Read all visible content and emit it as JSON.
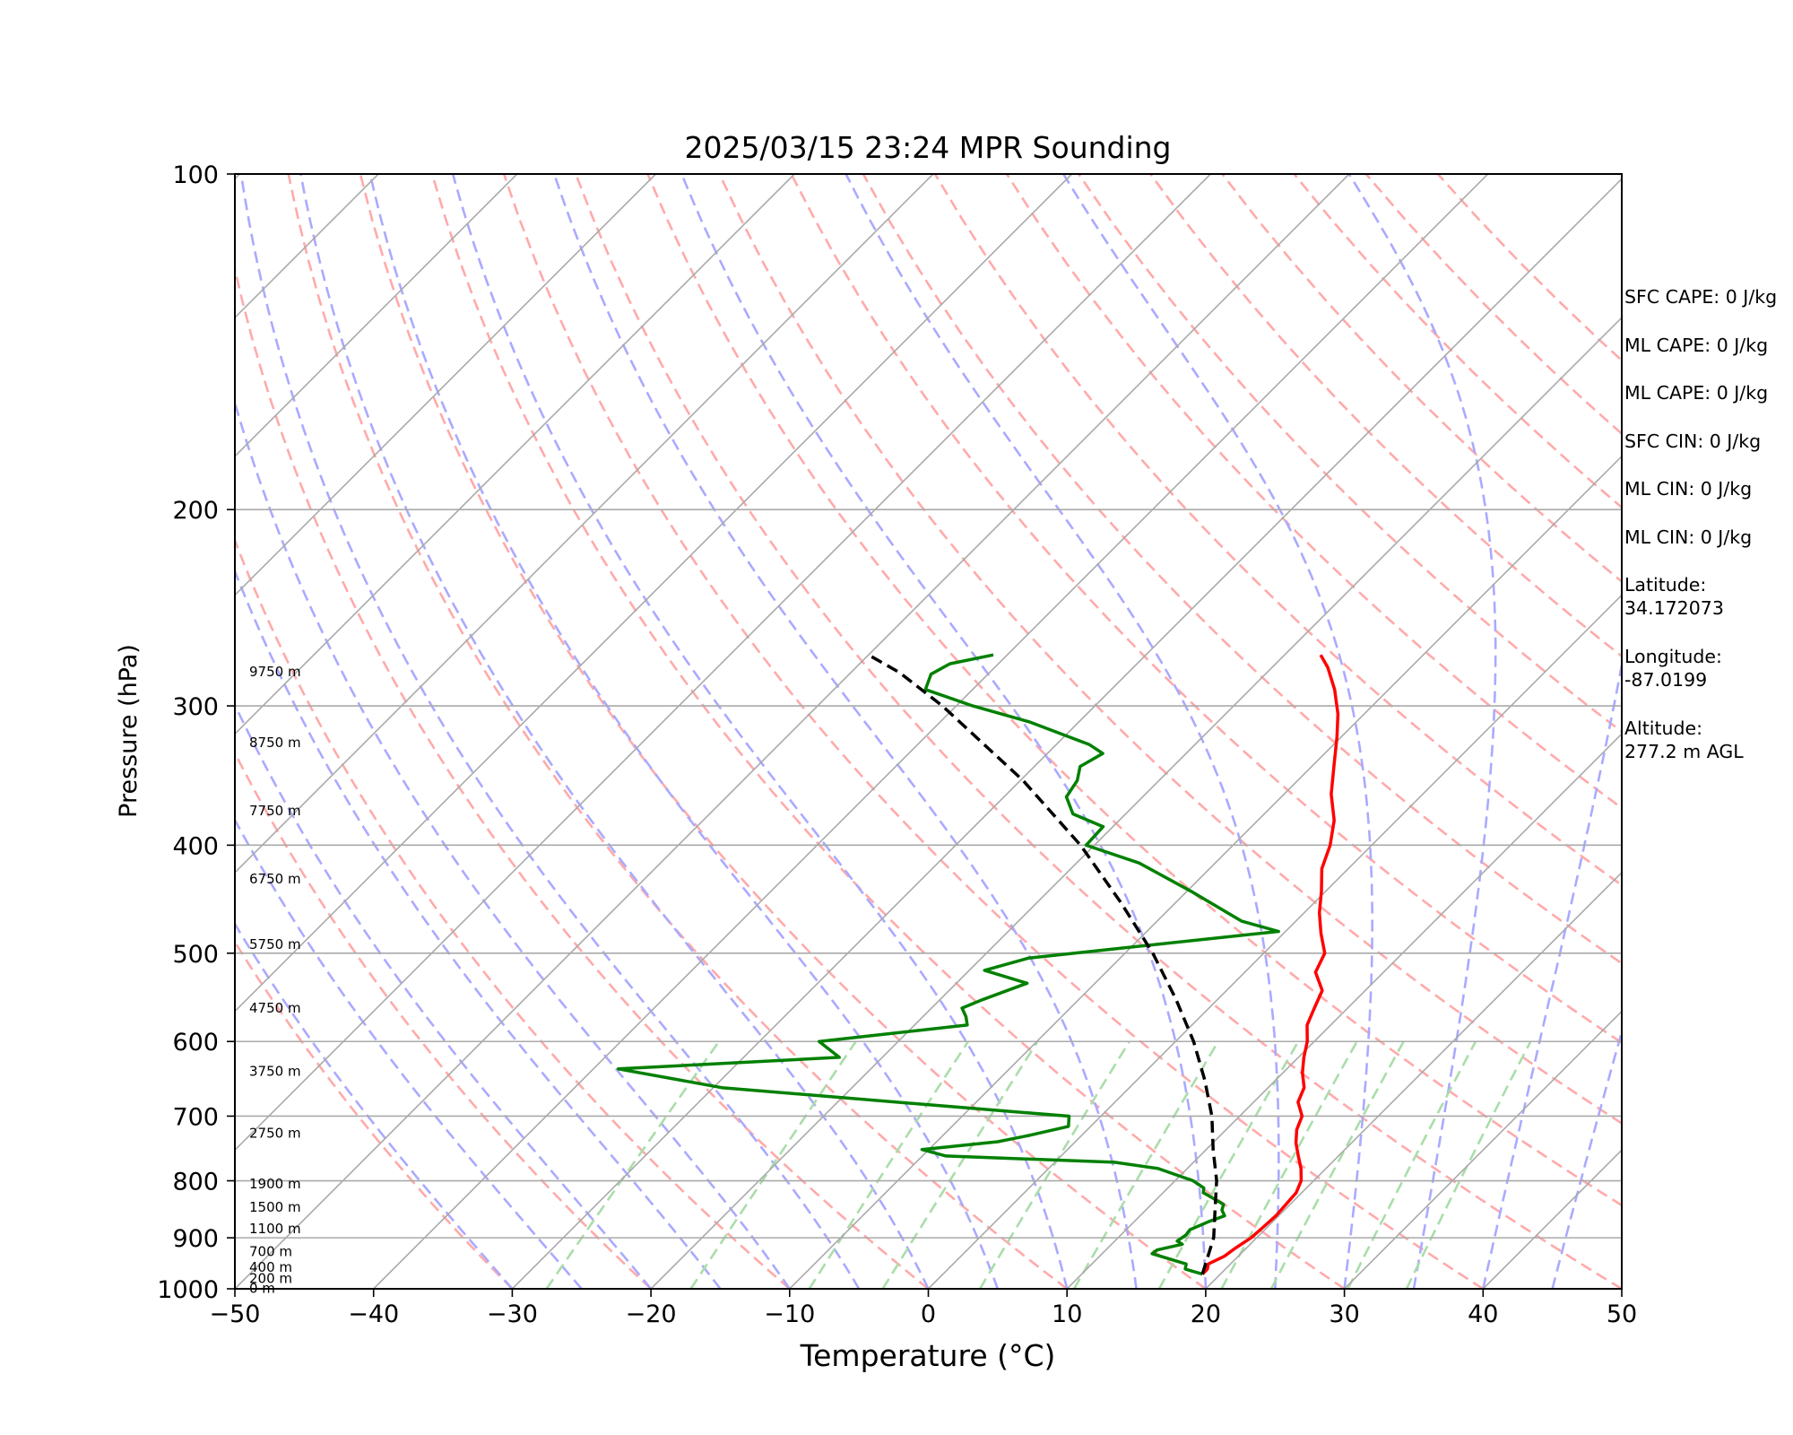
{
  "chart_data": {
    "type": "line",
    "title": "2025/03/15 23:24 MPR Sounding",
    "xlabel": "Temperature (°C)",
    "ylabel": "Pressure (hPa)",
    "xlim": [
      -50,
      50
    ],
    "ylim": [
      1000,
      100
    ],
    "y_scale": "log",
    "skew": true,
    "xticks": [
      -50,
      -40,
      -30,
      -20,
      -10,
      0,
      10,
      20,
      30,
      40,
      50
    ],
    "yticks": [
      1000,
      900,
      800,
      700,
      600,
      500,
      400,
      300,
      200,
      100
    ],
    "height_labels": [
      {
        "label": "0 m",
        "p": 997
      },
      {
        "label": "200 m",
        "p": 977
      },
      {
        "label": "400 m",
        "p": 955
      },
      {
        "label": "700 m",
        "p": 924
      },
      {
        "label": "1100 m",
        "p": 882
      },
      {
        "label": "1500 m",
        "p": 843
      },
      {
        "label": "1900 m",
        "p": 804
      },
      {
        "label": "2750 m",
        "p": 724
      },
      {
        "label": "3750 m",
        "p": 637
      },
      {
        "label": "4750 m",
        "p": 559
      },
      {
        "label": "5750 m",
        "p": 490
      },
      {
        "label": "6750 m",
        "p": 428
      },
      {
        "label": "7750 m",
        "p": 372
      },
      {
        "label": "8750 m",
        "p": 323
      },
      {
        "label": "9750 m",
        "p": 279
      }
    ],
    "series": [
      {
        "role": "temperature",
        "color": "#ff0000",
        "points": [
          [
            18.7,
            970
          ],
          [
            18.7,
            960
          ],
          [
            18.4,
            950
          ],
          [
            19.0,
            935
          ],
          [
            19.2,
            920
          ],
          [
            19.6,
            900
          ],
          [
            19.7,
            880
          ],
          [
            19.8,
            860
          ],
          [
            19.7,
            840
          ],
          [
            19.6,
            820
          ],
          [
            19.1,
            800
          ],
          [
            18.2,
            780
          ],
          [
            17.1,
            760
          ],
          [
            16.0,
            740
          ],
          [
            15.1,
            720
          ],
          [
            14.5,
            700
          ],
          [
            13.2,
            680
          ],
          [
            12.6,
            660
          ],
          [
            11.4,
            640
          ],
          [
            10.4,
            620
          ],
          [
            9.5,
            600
          ],
          [
            8.3,
            580
          ],
          [
            7.6,
            560
          ],
          [
            6.9,
            540
          ],
          [
            5.1,
            520
          ],
          [
            4.4,
            500
          ],
          [
            2.7,
            480
          ],
          [
            1.1,
            460
          ],
          [
            -0.3,
            440
          ],
          [
            -1.9,
            420
          ],
          [
            -3.0,
            400
          ],
          [
            -4.5,
            380
          ],
          [
            -6.6,
            360
          ],
          [
            -8.4,
            340
          ],
          [
            -10.3,
            320
          ],
          [
            -11.9,
            305
          ],
          [
            -13.9,
            290
          ],
          [
            -16.0,
            277
          ],
          [
            -17.4,
            270
          ]
        ]
      },
      {
        "role": "dewpoint",
        "color": "#008000",
        "points": [
          [
            18.7,
            970
          ],
          [
            17.9,
            965
          ],
          [
            17.1,
            960
          ],
          [
            16.8,
            950
          ],
          [
            15.2,
            940
          ],
          [
            13.6,
            930
          ],
          [
            13.7,
            923
          ],
          [
            15.1,
            912
          ],
          [
            14.5,
            906
          ],
          [
            14.7,
            895
          ],
          [
            14.6,
            885
          ],
          [
            15.4,
            870
          ],
          [
            16.1,
            860
          ],
          [
            15.5,
            850
          ],
          [
            15.2,
            840
          ],
          [
            13.5,
            825
          ],
          [
            12.9,
            820
          ],
          [
            12.6,
            812
          ],
          [
            11.3,
            800
          ],
          [
            7.9,
            780
          ],
          [
            4.3,
            770
          ],
          [
            -8.3,
            760
          ],
          [
            -10.5,
            750
          ],
          [
            -5.6,
            738
          ],
          [
            -3.7,
            728
          ],
          [
            -1.6,
            715
          ],
          [
            -2.3,
            700
          ],
          [
            -11.1,
            687
          ],
          [
            -29.4,
            660
          ],
          [
            -38.2,
            635
          ],
          [
            -23.1,
            620
          ],
          [
            -25.7,
            600
          ],
          [
            -16.2,
            580
          ],
          [
            -16.9,
            570
          ],
          [
            -17.8,
            560
          ],
          [
            -16.9,
            550
          ],
          [
            -14.9,
            532
          ],
          [
            -18.9,
            518
          ],
          [
            -16.6,
            505
          ],
          [
            -0.5,
            478
          ],
          [
            -3.9,
            468
          ],
          [
            -9.7,
            440
          ],
          [
            -15.5,
            415
          ],
          [
            -20.6,
            400
          ],
          [
            -20.7,
            385
          ],
          [
            -23.8,
            375
          ],
          [
            -25.5,
            362
          ],
          [
            -25.9,
            350
          ],
          [
            -26.7,
            340
          ],
          [
            -26.0,
            331
          ],
          [
            -27.6,
            325
          ],
          [
            -33.6,
            310
          ],
          [
            -38.8,
            300
          ],
          [
            -43.4,
            290
          ],
          [
            -44.1,
            281
          ],
          [
            -43.5,
            275
          ],
          [
            -41.0,
            270
          ]
        ]
      },
      {
        "role": "parcel",
        "color": "#000000",
        "points": [
          [
            18.7,
            970
          ],
          [
            16.9,
            900
          ],
          [
            15.0,
            850
          ],
          [
            13.0,
            800
          ],
          [
            10.5,
            750
          ],
          [
            8.0,
            700
          ],
          [
            4.9,
            650
          ],
          [
            1.3,
            600
          ],
          [
            -3.0,
            550
          ],
          [
            -8.0,
            500
          ],
          [
            -14.0,
            450
          ],
          [
            -21.0,
            400
          ],
          [
            -29.8,
            350
          ],
          [
            -41.0,
            300
          ],
          [
            -46.5,
            280
          ],
          [
            -50.0,
            270
          ]
        ]
      }
    ],
    "background_lines": {
      "isotherms": "#aaaaaa",
      "dry_adiabats": "#ffaaaa",
      "moist_adiabats": "#aaaaff",
      "mixing_ratio": "#aaddaa"
    }
  },
  "stats": {
    "sfc_cape": "SFC CAPE: 0 J/kg",
    "ml_cape_1": "ML CAPE: 0 J/kg",
    "ml_cape_2": "ML CAPE: 0 J/kg",
    "sfc_cin": "SFC CIN: 0 J/kg",
    "ml_cin_1": "ML CIN: 0 J/kg",
    "ml_cin_2": "ML CIN: 0 J/kg",
    "latitude_label": "Latitude:",
    "latitude_value": "34.172073",
    "longitude_label": "Longitude:",
    "longitude_value": "-87.0199",
    "altitude_label": "Altitude:",
    "altitude_value": "277.2 m AGL"
  }
}
